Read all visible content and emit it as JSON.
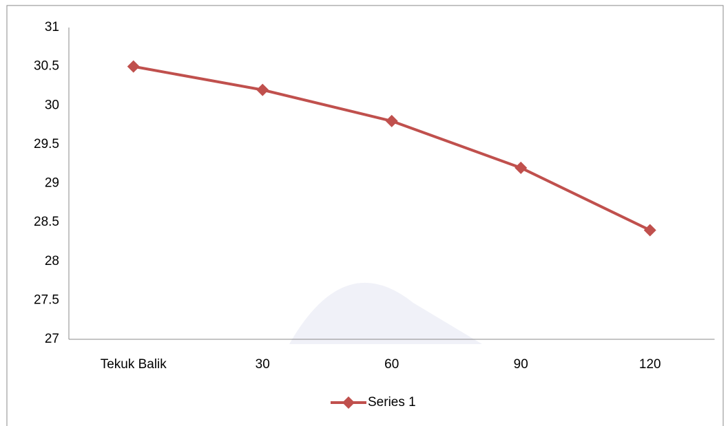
{
  "chart_data": {
    "type": "line",
    "categories": [
      "Tekuk Balik",
      "30",
      "60",
      "90",
      "120"
    ],
    "series": [
      {
        "name": "Series 1",
        "color": "#c0504d",
        "values": [
          30.5,
          30.2,
          29.8,
          29.2,
          28.4
        ]
      }
    ],
    "ylim": [
      27,
      31
    ],
    "yticks": [
      27,
      27.5,
      28,
      28.5,
      29,
      29.5,
      30,
      30.5,
      31
    ],
    "grid": false,
    "legend": "bottom"
  }
}
